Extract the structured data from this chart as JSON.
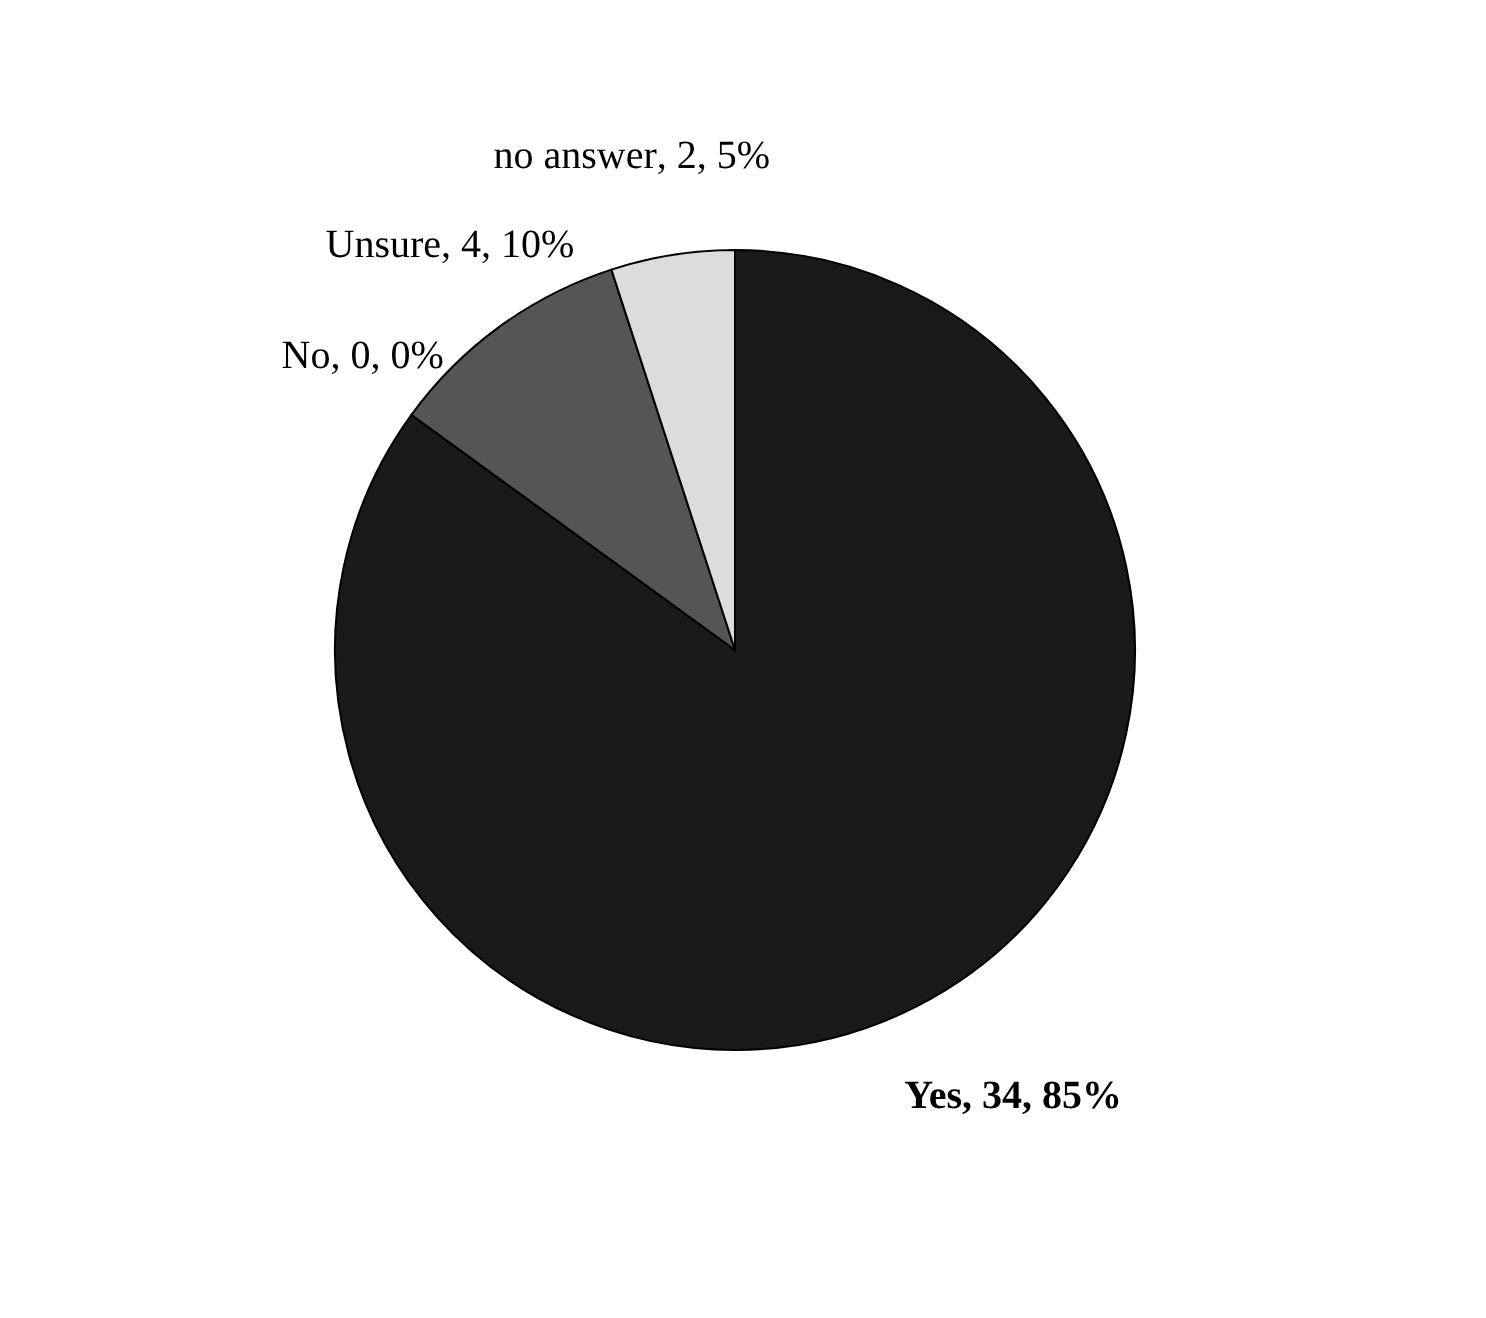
{
  "chart_data": {
    "type": "pie",
    "categories": [
      "Yes",
      "No",
      "Unsure",
      "no answer"
    ],
    "values": [
      34,
      0,
      4,
      2
    ],
    "colors": [
      "#1a1a1a",
      "#3a3a3a",
      "#555555",
      "#dcdcdc"
    ],
    "value_labels": [
      ", 34, 85%",
      ", 0, 0%",
      ", 4, 10%",
      ", 2, 5%"
    ],
    "legend": false
  }
}
